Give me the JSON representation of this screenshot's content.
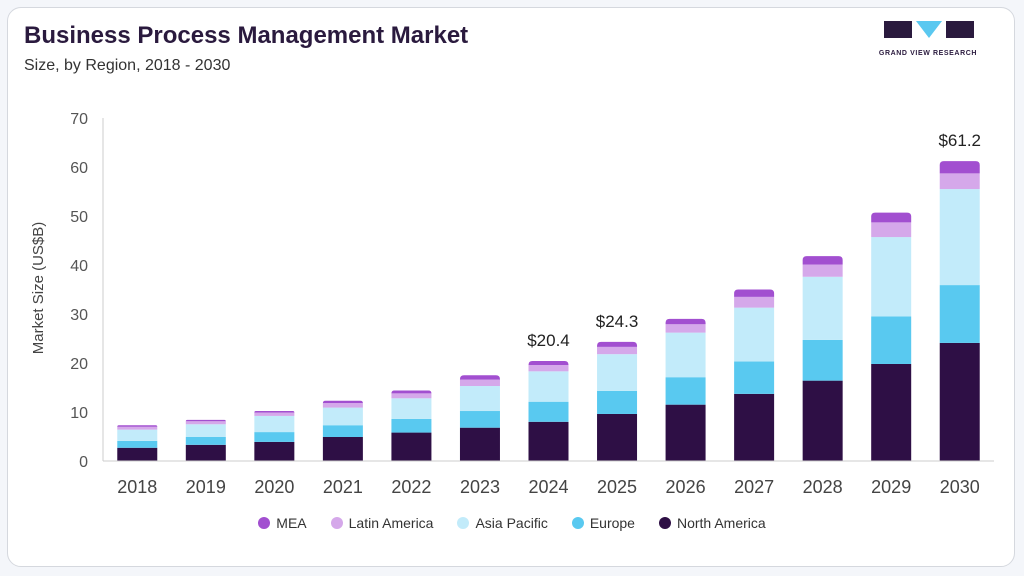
{
  "header": {
    "title": "Business Process Management Market",
    "subtitle": "Size, by Region, 2018 - 2030"
  },
  "logo": {
    "text": "GRAND VIEW RESEARCH",
    "primary_color": "#2a1a3e",
    "accent_color": "#5ac8f0"
  },
  "chart_data": {
    "type": "bar",
    "stacked": true,
    "categories": [
      "2018",
      "2019",
      "2020",
      "2021",
      "2022",
      "2023",
      "2024",
      "2025",
      "2026",
      "2027",
      "2028",
      "2029",
      "2030"
    ],
    "ylabel": "Market Size (US$B)",
    "xlabel": "",
    "ylim": [
      0,
      70
    ],
    "yticks": [
      0,
      10,
      20,
      30,
      40,
      50,
      60,
      70
    ],
    "grid": false,
    "legend_position": "bottom",
    "series": [
      {
        "name": "North America",
        "color": "#2e0f45",
        "values": [
          2.7,
          3.3,
          3.9,
          4.9,
          5.8,
          6.8,
          8.0,
          9.6,
          11.5,
          13.7,
          16.4,
          19.8,
          24.1
        ]
      },
      {
        "name": "Europe",
        "color": "#59c9f0",
        "values": [
          1.4,
          1.6,
          2.0,
          2.4,
          2.8,
          3.4,
          4.1,
          4.7,
          5.6,
          6.6,
          8.3,
          9.7,
          11.8
        ]
      },
      {
        "name": "Asia Pacific",
        "color": "#c2ebfa",
        "values": [
          2.3,
          2.6,
          3.3,
          3.6,
          4.2,
          5.1,
          6.2,
          7.5,
          9.1,
          11.0,
          12.9,
          16.2,
          19.6
        ]
      },
      {
        "name": "Latin America",
        "color": "#d5a8ea",
        "values": [
          0.6,
          0.6,
          0.7,
          0.9,
          1.0,
          1.3,
          1.3,
          1.5,
          1.7,
          2.2,
          2.5,
          3.0,
          3.2
        ]
      },
      {
        "name": "MEA",
        "color": "#a24fd0",
        "values": [
          0.3,
          0.3,
          0.3,
          0.5,
          0.6,
          0.9,
          0.8,
          1.0,
          1.1,
          1.5,
          1.7,
          2.0,
          2.5
        ]
      }
    ],
    "annotations": [
      {
        "category": "2024",
        "text": "$20.4",
        "value": 20.4
      },
      {
        "category": "2025",
        "text": "$24.3",
        "value": 24.3
      },
      {
        "category": "2030",
        "text": "$61.2",
        "value": 61.2
      }
    ]
  }
}
